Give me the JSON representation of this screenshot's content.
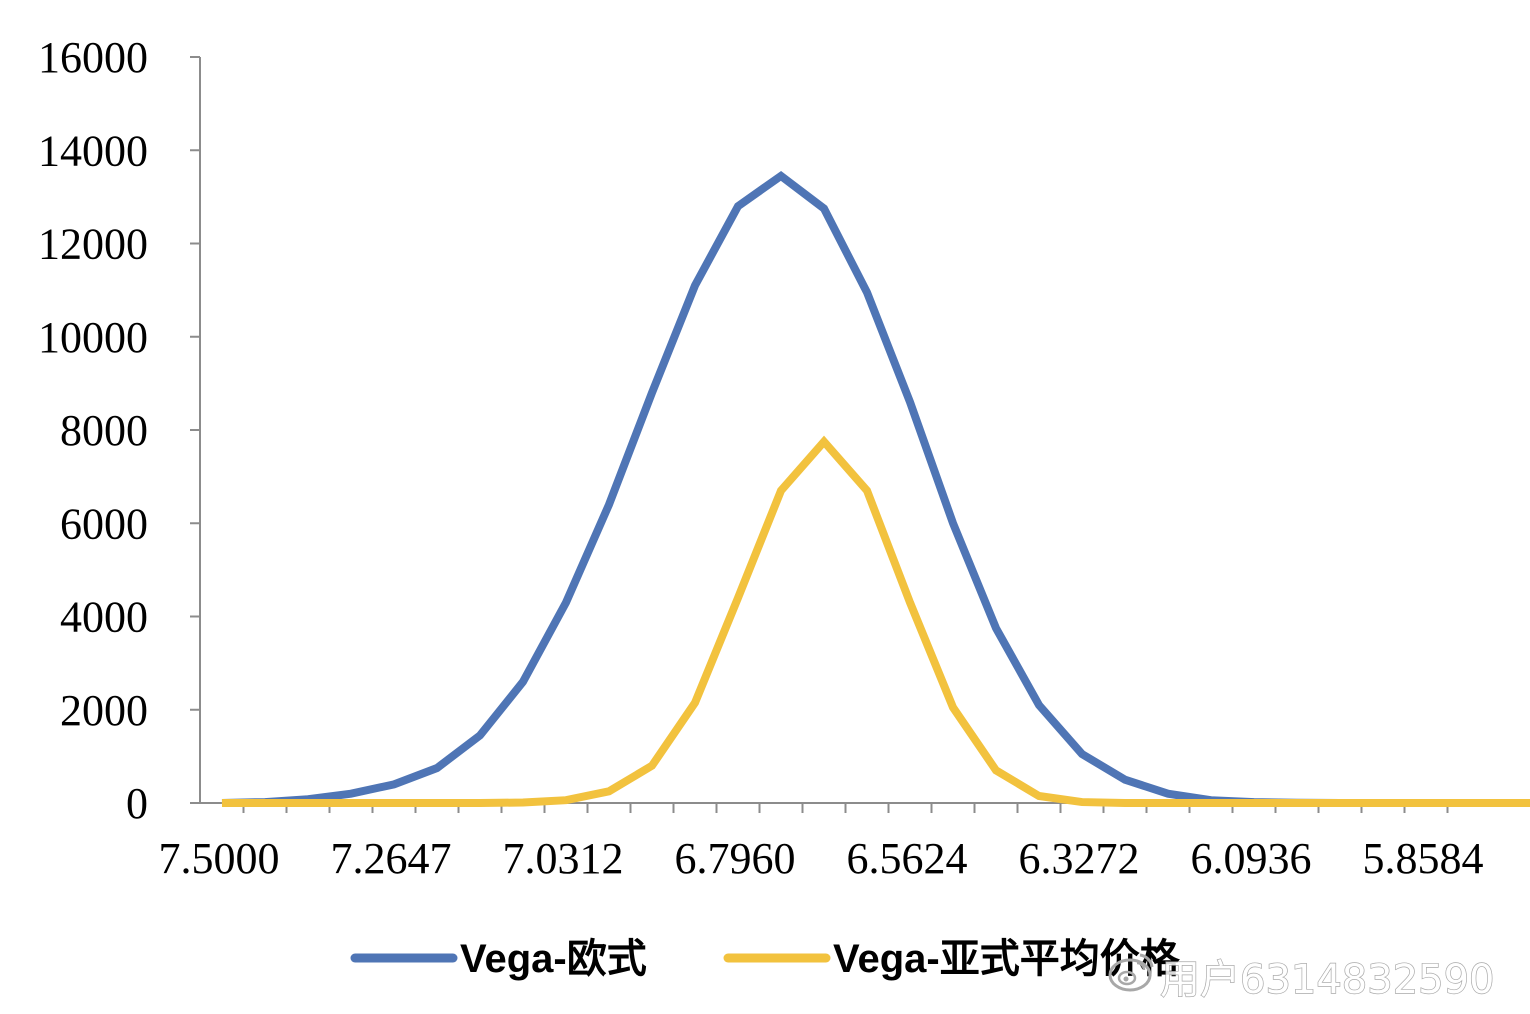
{
  "chart_data": {
    "type": "line",
    "title": "",
    "xlabel": "",
    "ylabel": "",
    "ylim": [
      0,
      16000
    ],
    "yticks": [
      0,
      2000,
      4000,
      6000,
      8000,
      10000,
      12000,
      14000,
      16000
    ],
    "xtick_labels": [
      "7.5000",
      "7.2647",
      "7.0312",
      "6.7960",
      "6.5624",
      "6.3272",
      "6.0936",
      "5.8584"
    ],
    "xtick_every": 4,
    "grid": false,
    "legend_position": "bottom",
    "series": [
      {
        "name": "Vega-欧式",
        "color": "#4f75b5",
        "values": [
          0,
          20,
          80,
          200,
          400,
          750,
          1450,
          2600,
          4300,
          6400,
          8800,
          11100,
          12800,
          13450,
          12750,
          10950,
          8600,
          6000,
          3750,
          2100,
          1050,
          500,
          200,
          60,
          20,
          5,
          0,
          0,
          0,
          0,
          0,
          0
        ]
      },
      {
        "name": "Vega-亚式平均价格",
        "color": "#f2c23e",
        "values": [
          0,
          0,
          0,
          0,
          0,
          0,
          0,
          10,
          60,
          250,
          800,
          2150,
          4400,
          6700,
          7750,
          6700,
          4300,
          2050,
          700,
          150,
          20,
          0,
          0,
          0,
          0,
          0,
          0,
          0,
          0,
          0,
          0,
          0
        ]
      }
    ]
  },
  "watermark": {
    "text": "用户6314832590",
    "icon": "weibo-logo-icon"
  }
}
